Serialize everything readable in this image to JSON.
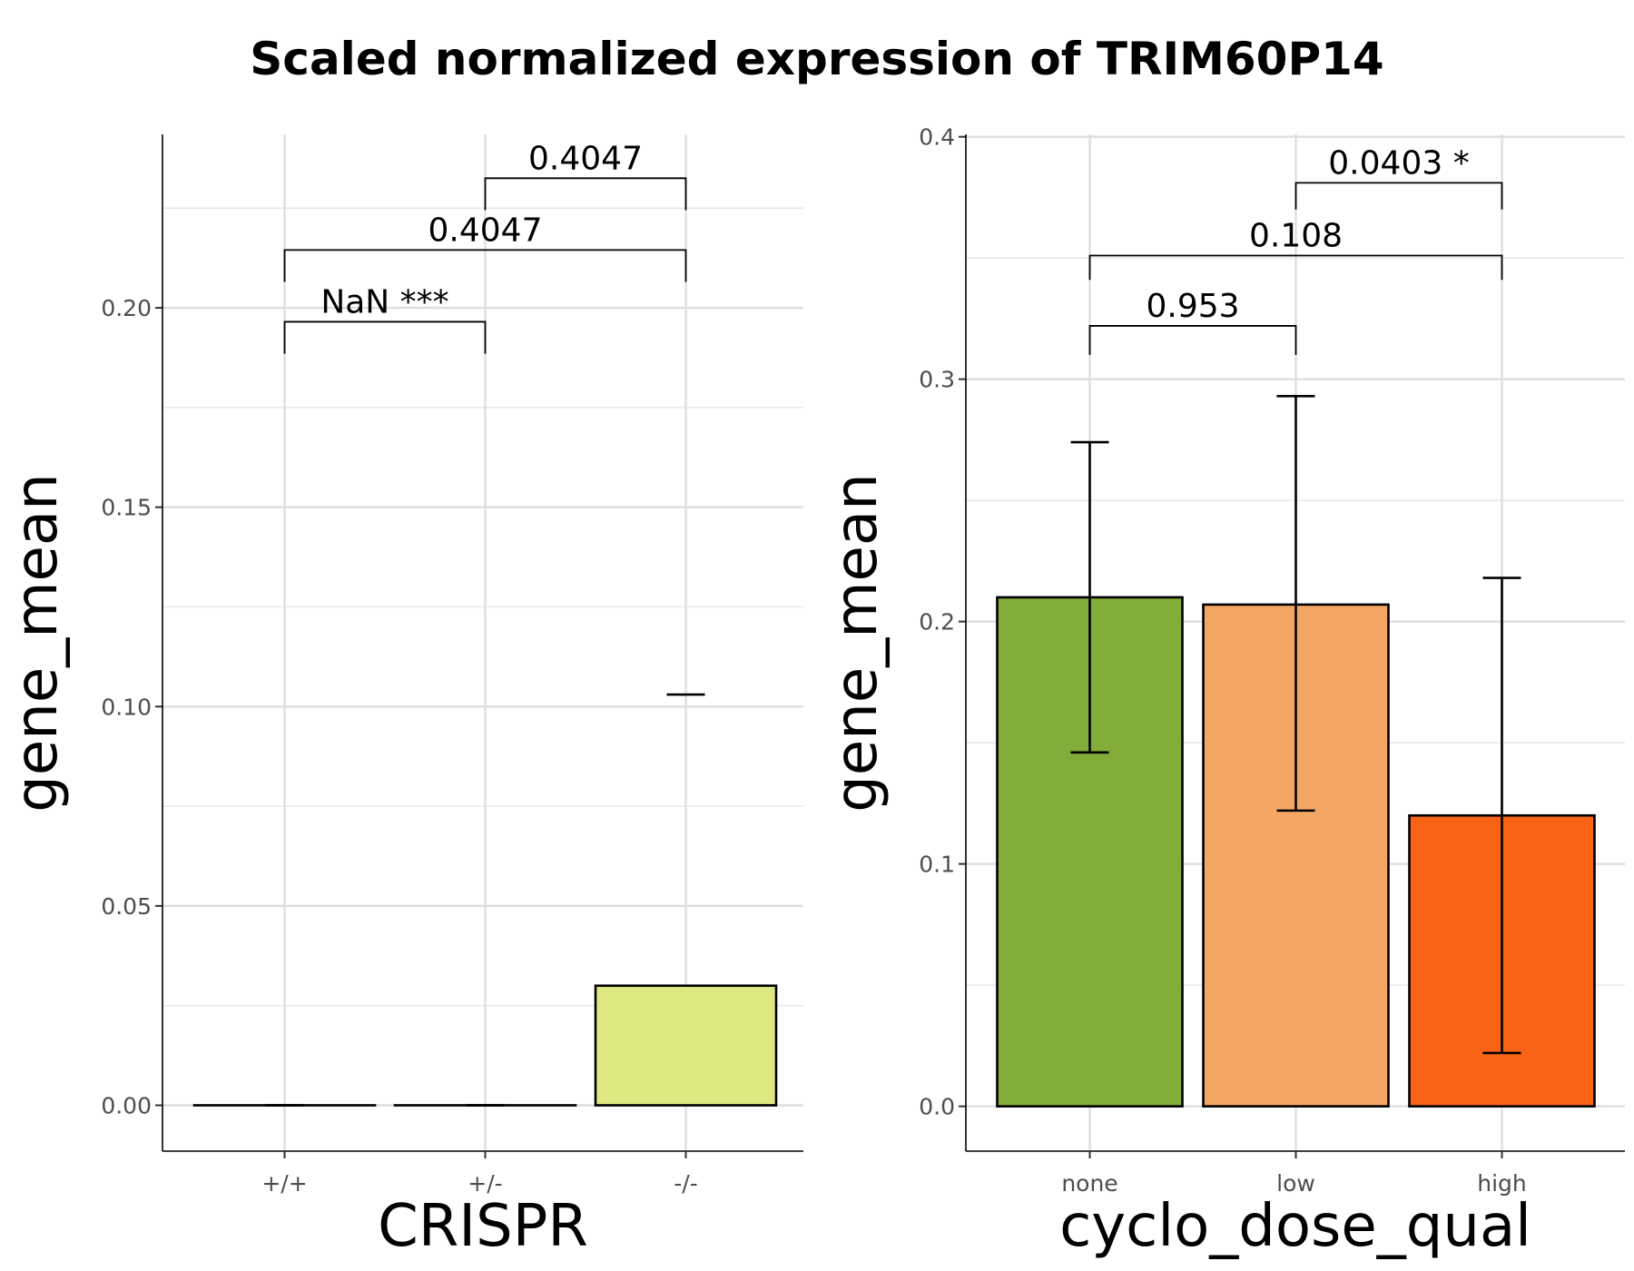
{
  "figure": {
    "title": "Scaled normalized expression of TRIM60P14"
  },
  "chart_data": [
    {
      "type": "bar",
      "xlabel": "CRISPR",
      "ylabel": "gene_mean",
      "categories": [
        "+/+",
        "+/-",
        "-/-"
      ],
      "values": [
        0.0,
        0.0,
        0.03
      ],
      "error_low": [
        0.0,
        0.0,
        null
      ],
      "error_high": [
        0.0,
        0.0,
        0.103
      ],
      "colors": [
        "#ffffff",
        "#ffffff",
        "#dde880"
      ],
      "ylim": [
        -0.0115,
        0.2435
      ],
      "yticks": [
        0.0,
        0.05,
        0.1,
        0.15,
        0.2
      ],
      "ytick_labels": [
        "0.00",
        "0.05",
        "0.10",
        "0.15",
        "0.20"
      ],
      "grid": true,
      "comparisons": [
        {
          "from": 0,
          "to": 1,
          "label": "NaN ***",
          "y": 0.1965,
          "tick_down": 0.1885
        },
        {
          "from": 0,
          "to": 2,
          "label": "0.4047",
          "y": 0.2145,
          "tick_down": 0.2065
        },
        {
          "from": 1,
          "to": 2,
          "label": "0.4047",
          "y": 0.2325,
          "tick_down": 0.2245
        }
      ]
    },
    {
      "type": "bar",
      "xlabel": "cyclo_dose_qual",
      "ylabel": "gene_mean",
      "categories": [
        "none",
        "low",
        "high"
      ],
      "values": [
        0.21,
        0.207,
        0.12
      ],
      "error_low": [
        0.146,
        0.122,
        0.022
      ],
      "error_high": [
        0.274,
        0.293,
        0.218
      ],
      "colors": [
        "#82ad3b",
        "#f4a664",
        "#f86315"
      ],
      "ylim": [
        -0.0185,
        0.401
      ],
      "yticks": [
        0.0,
        0.1,
        0.2,
        0.3,
        0.4
      ],
      "ytick_labels": [
        "0.0",
        "0.1",
        "0.2",
        "0.3",
        "0.4"
      ],
      "grid": true,
      "comparisons": [
        {
          "from": 0,
          "to": 1,
          "label": "0.953",
          "y": 0.322,
          "tick_down": 0.31
        },
        {
          "from": 0,
          "to": 2,
          "label": "0.108",
          "y": 0.351,
          "tick_down": 0.341
        },
        {
          "from": 1,
          "to": 2,
          "label": "0.0403 *",
          "y": 0.381,
          "tick_down": 0.37
        }
      ]
    }
  ]
}
